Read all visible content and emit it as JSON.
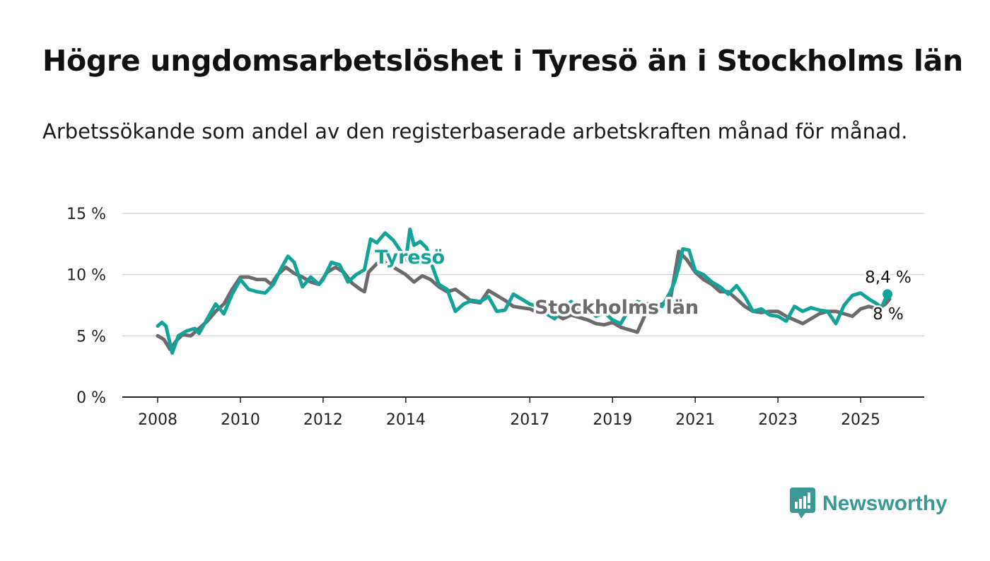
{
  "title": "Högre ungdomsarbetslöshet i Tyresö än i Stockholms län",
  "subtitle": "Arbetssökande som andel av den registerbaserade arbetskraften månad för månad.",
  "brand": {
    "name": "Newsworthy",
    "icon": "newsworthy-logo-icon",
    "color": "#3a9994"
  },
  "chart_data": {
    "type": "line",
    "title": "Högre ungdomsarbetslöshet i Tyresö än i Stockholms län",
    "subtitle": "Arbetssökande som andel av den registerbaserade arbetskraften månad för månad.",
    "xlabel": "",
    "ylabel": "",
    "xlim": [
      2008,
      2025.7
    ],
    "ylim": [
      0,
      15
    ],
    "y_ticks": [
      0,
      5,
      10,
      15
    ],
    "y_tick_labels": [
      "0 %",
      "5 %",
      "10 %",
      "15 %"
    ],
    "x_ticks": [
      2008,
      2010,
      2012,
      2014,
      2017,
      2019,
      2021,
      2023,
      2025
    ],
    "x_tick_labels": [
      "2008",
      "2010",
      "2012",
      "2014",
      "2017",
      "2019",
      "2021",
      "2023",
      "2025"
    ],
    "grid": "horizontal",
    "series": [
      {
        "name": "Stockholms län",
        "color": "#6b6b6e",
        "end_label": "8 %",
        "points": [
          [
            2008.0,
            5.0
          ],
          [
            2008.15,
            4.7
          ],
          [
            2008.3,
            3.9
          ],
          [
            2008.45,
            4.6
          ],
          [
            2008.6,
            5.1
          ],
          [
            2008.8,
            5.0
          ],
          [
            2009.0,
            5.6
          ],
          [
            2009.2,
            6.2
          ],
          [
            2009.4,
            7.0
          ],
          [
            2009.6,
            7.6
          ],
          [
            2009.8,
            8.8
          ],
          [
            2010.0,
            9.8
          ],
          [
            2010.2,
            9.8
          ],
          [
            2010.4,
            9.6
          ],
          [
            2010.6,
            9.6
          ],
          [
            2010.75,
            9.2
          ],
          [
            2010.9,
            10.0
          ],
          [
            2011.1,
            10.6
          ],
          [
            2011.3,
            10.1
          ],
          [
            2011.5,
            9.8
          ],
          [
            2011.7,
            9.4
          ],
          [
            2011.9,
            9.2
          ],
          [
            2012.1,
            10.2
          ],
          [
            2012.3,
            10.6
          ],
          [
            2012.5,
            10.2
          ],
          [
            2012.7,
            9.3
          ],
          [
            2012.9,
            8.8
          ],
          [
            2013.0,
            8.6
          ],
          [
            2013.1,
            10.2
          ],
          [
            2013.3,
            10.9
          ],
          [
            2013.45,
            11.1
          ],
          [
            2013.6,
            10.8
          ],
          [
            2013.8,
            10.4
          ],
          [
            2014.0,
            10.0
          ],
          [
            2014.2,
            9.4
          ],
          [
            2014.4,
            9.9
          ],
          [
            2014.6,
            9.6
          ],
          [
            2014.8,
            9.0
          ],
          [
            2015.0,
            8.6
          ],
          [
            2015.2,
            8.8
          ],
          [
            2015.4,
            8.3
          ],
          [
            2015.6,
            7.8
          ],
          [
            2015.8,
            7.7
          ],
          [
            2016.0,
            8.7
          ],
          [
            2016.2,
            8.3
          ],
          [
            2016.4,
            7.9
          ],
          [
            2016.6,
            7.4
          ],
          [
            2016.8,
            7.3
          ],
          [
            2017.0,
            7.2
          ],
          [
            2017.2,
            6.9
          ],
          [
            2017.4,
            7.2
          ],
          [
            2017.6,
            6.8
          ],
          [
            2017.8,
            6.4
          ],
          [
            2018.0,
            6.7
          ],
          [
            2018.2,
            6.5
          ],
          [
            2018.4,
            6.3
          ],
          [
            2018.6,
            6.0
          ],
          [
            2018.8,
            5.9
          ],
          [
            2019.0,
            6.1
          ],
          [
            2019.2,
            5.7
          ],
          [
            2019.4,
            5.5
          ],
          [
            2019.6,
            5.3
          ],
          [
            2019.8,
            6.8
          ],
          [
            2020.0,
            7.4
          ],
          [
            2020.2,
            7.6
          ],
          [
            2020.4,
            8.0
          ],
          [
            2020.6,
            11.9
          ],
          [
            2020.8,
            11.2
          ],
          [
            2021.0,
            10.2
          ],
          [
            2021.2,
            9.6
          ],
          [
            2021.4,
            9.2
          ],
          [
            2021.6,
            8.6
          ],
          [
            2021.8,
            8.6
          ],
          [
            2022.0,
            8.0
          ],
          [
            2022.2,
            7.4
          ],
          [
            2022.4,
            7.0
          ],
          [
            2022.6,
            6.9
          ],
          [
            2022.8,
            7.0
          ],
          [
            2023.0,
            7.0
          ],
          [
            2023.2,
            6.6
          ],
          [
            2023.4,
            6.3
          ],
          [
            2023.6,
            6.0
          ],
          [
            2023.8,
            6.4
          ],
          [
            2024.0,
            6.8
          ],
          [
            2024.2,
            7.0
          ],
          [
            2024.4,
            7.0
          ],
          [
            2024.6,
            6.8
          ],
          [
            2024.8,
            6.6
          ],
          [
            2025.0,
            7.2
          ],
          [
            2025.2,
            7.4
          ],
          [
            2025.4,
            7.2
          ],
          [
            2025.6,
            7.6
          ],
          [
            2025.7,
            8.0
          ]
        ]
      },
      {
        "name": "Tyresö",
        "color": "#14a399",
        "end_label": "8,4 %",
        "points": [
          [
            2008.0,
            5.8
          ],
          [
            2008.1,
            6.1
          ],
          [
            2008.2,
            5.8
          ],
          [
            2008.35,
            3.6
          ],
          [
            2008.5,
            5.0
          ],
          [
            2008.7,
            5.4
          ],
          [
            2008.9,
            5.6
          ],
          [
            2009.0,
            5.2
          ],
          [
            2009.2,
            6.4
          ],
          [
            2009.4,
            7.6
          ],
          [
            2009.6,
            6.8
          ],
          [
            2009.8,
            8.4
          ],
          [
            2010.0,
            9.6
          ],
          [
            2010.2,
            8.8
          ],
          [
            2010.4,
            8.6
          ],
          [
            2010.6,
            8.5
          ],
          [
            2010.8,
            9.2
          ],
          [
            2011.0,
            10.6
          ],
          [
            2011.15,
            11.5
          ],
          [
            2011.3,
            11.0
          ],
          [
            2011.5,
            9.0
          ],
          [
            2011.7,
            9.8
          ],
          [
            2011.9,
            9.2
          ],
          [
            2012.0,
            9.6
          ],
          [
            2012.2,
            11.0
          ],
          [
            2012.4,
            10.8
          ],
          [
            2012.6,
            9.4
          ],
          [
            2012.8,
            10.0
          ],
          [
            2013.0,
            10.4
          ],
          [
            2013.15,
            12.9
          ],
          [
            2013.3,
            12.6
          ],
          [
            2013.5,
            13.4
          ],
          [
            2013.7,
            12.8
          ],
          [
            2013.9,
            11.8
          ],
          [
            2014.0,
            11.2
          ],
          [
            2014.1,
            13.7
          ],
          [
            2014.2,
            12.4
          ],
          [
            2014.35,
            12.7
          ],
          [
            2014.5,
            12.2
          ],
          [
            2014.65,
            10.6
          ],
          [
            2014.8,
            9.2
          ],
          [
            2015.0,
            8.8
          ],
          [
            2015.2,
            7.0
          ],
          [
            2015.4,
            7.6
          ],
          [
            2015.6,
            7.9
          ],
          [
            2015.8,
            7.8
          ],
          [
            2016.0,
            8.2
          ],
          [
            2016.2,
            7.0
          ],
          [
            2016.4,
            7.1
          ],
          [
            2016.6,
            8.4
          ],
          [
            2016.8,
            8.0
          ],
          [
            2017.0,
            7.6
          ],
          [
            2017.2,
            7.4
          ],
          [
            2017.4,
            6.8
          ],
          [
            2017.6,
            6.4
          ],
          [
            2017.8,
            7.2
          ],
          [
            2018.0,
            7.8
          ],
          [
            2018.2,
            6.9
          ],
          [
            2018.4,
            7.2
          ],
          [
            2018.6,
            6.6
          ],
          [
            2018.8,
            6.9
          ],
          [
            2019.0,
            6.3
          ],
          [
            2019.2,
            6.0
          ],
          [
            2019.4,
            7.2
          ],
          [
            2019.6,
            7.8
          ],
          [
            2019.8,
            7.6
          ],
          [
            2020.0,
            7.7
          ],
          [
            2020.2,
            7.4
          ],
          [
            2020.4,
            8.6
          ],
          [
            2020.5,
            9.4
          ],
          [
            2020.6,
            10.6
          ],
          [
            2020.7,
            12.1
          ],
          [
            2020.85,
            12.0
          ],
          [
            2021.0,
            10.3
          ],
          [
            2021.2,
            10.0
          ],
          [
            2021.4,
            9.4
          ],
          [
            2021.6,
            9.0
          ],
          [
            2021.8,
            8.4
          ],
          [
            2022.0,
            9.1
          ],
          [
            2022.2,
            8.2
          ],
          [
            2022.4,
            7.0
          ],
          [
            2022.6,
            7.2
          ],
          [
            2022.8,
            6.7
          ],
          [
            2023.0,
            6.6
          ],
          [
            2023.2,
            6.2
          ],
          [
            2023.4,
            7.4
          ],
          [
            2023.6,
            7.0
          ],
          [
            2023.8,
            7.3
          ],
          [
            2024.0,
            7.1
          ],
          [
            2024.2,
            7.0
          ],
          [
            2024.4,
            6.0
          ],
          [
            2024.6,
            7.5
          ],
          [
            2024.8,
            8.3
          ],
          [
            2025.0,
            8.5
          ],
          [
            2025.2,
            8.0
          ],
          [
            2025.4,
            7.6
          ],
          [
            2025.5,
            7.3
          ],
          [
            2025.65,
            8.4
          ]
        ]
      }
    ],
    "annotations": [
      {
        "text": "Tyresö",
        "series": "Tyresö",
        "x": 2014.1,
        "y": 10.9
      },
      {
        "text": "Stockholms län",
        "series": "Stockholms län",
        "x": 2019.1,
        "y": 6.8
      }
    ]
  }
}
